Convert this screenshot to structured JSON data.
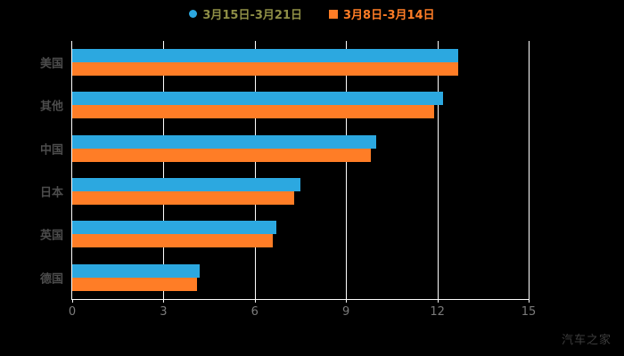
{
  "legend": [
    {
      "label": "3月15日-3月21日",
      "color": "#2ca8e0",
      "marker": "circle",
      "text_color": "#8f8f46"
    },
    {
      "label": "3月8日-3月14日",
      "color": "#ff7d26",
      "marker": "square",
      "text_color": "#ff7d26"
    }
  ],
  "watermark": "汽车之家",
  "colors": {
    "background": "#000000",
    "grid": "#ffffff",
    "axis": "#ffffff",
    "tick_label": "#7a7a7a",
    "category_label": "#4c4c4c",
    "watermark": "#3d3d3d",
    "series_blue": "#2ca8e0",
    "series_orange": "#ff7d26"
  },
  "chart_data": {
    "type": "bar",
    "orientation": "horizontal",
    "title": "",
    "xlabel": "",
    "ylabel": "",
    "categories": [
      "美国",
      "其他",
      "中国",
      "日本",
      "英国",
      "德国"
    ],
    "series": [
      {
        "name": "3月15日-3月21日",
        "color": "#2ca8e0",
        "values": [
          12.7,
          12.2,
          10.0,
          7.5,
          6.7,
          4.2
        ]
      },
      {
        "name": "3月8日-3月14日",
        "color": "#ff7d26",
        "values": [
          12.7,
          11.9,
          9.8,
          7.3,
          6.6,
          4.1
        ]
      }
    ],
    "xticks": [
      0,
      3,
      6,
      9,
      12,
      15
    ],
    "xlim": [
      0,
      15
    ],
    "grid": true,
    "legend_position": "top"
  }
}
